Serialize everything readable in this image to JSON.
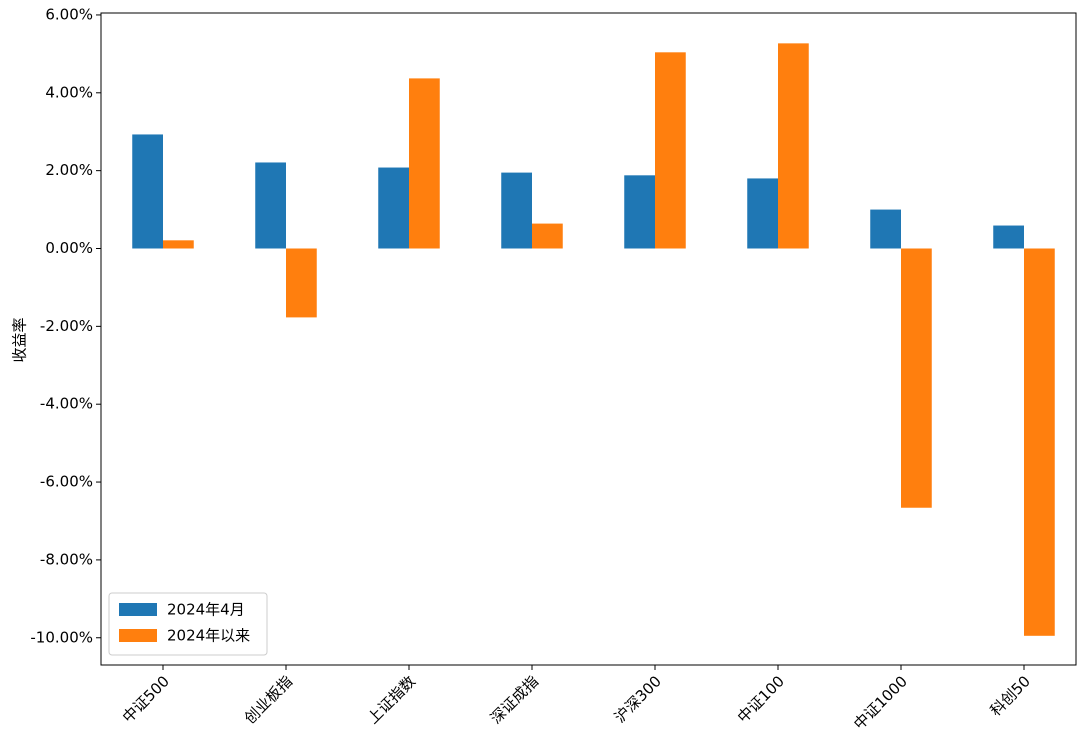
{
  "chart_data": {
    "type": "bar",
    "ylabel": "收益率",
    "categories": [
      "中证500",
      "创业板指",
      "上证指数",
      "深证成指",
      "沪深300",
      "中证100",
      "中证1000",
      "科创50"
    ],
    "series": [
      {
        "name": "2024年4月",
        "color": "#1f77b4",
        "values": [
          2.93,
          2.21,
          2.08,
          1.95,
          1.88,
          1.8,
          1.0,
          0.59
        ]
      },
      {
        "name": "2024年以来",
        "color": "#ff7f0e",
        "values": [
          0.21,
          -1.77,
          4.37,
          0.64,
          5.04,
          5.27,
          -6.66,
          -9.95
        ]
      }
    ],
    "ylim": [
      -10.7,
      6.05
    ],
    "yticks": [
      {
        "value": 6,
        "label": "6.00%"
      },
      {
        "value": 4,
        "label": "4.00%"
      },
      {
        "value": 2,
        "label": "2.00%"
      },
      {
        "value": 0,
        "label": "0.00%"
      },
      {
        "value": -2,
        "label": "-2.00%"
      },
      {
        "value": -4,
        "label": "-4.00%"
      },
      {
        "value": -6,
        "label": "-6.00%"
      },
      {
        "value": -8,
        "label": "-8.00%"
      },
      {
        "value": -10,
        "label": "-10.00%"
      }
    ],
    "legend": "lower left",
    "grid": false
  }
}
